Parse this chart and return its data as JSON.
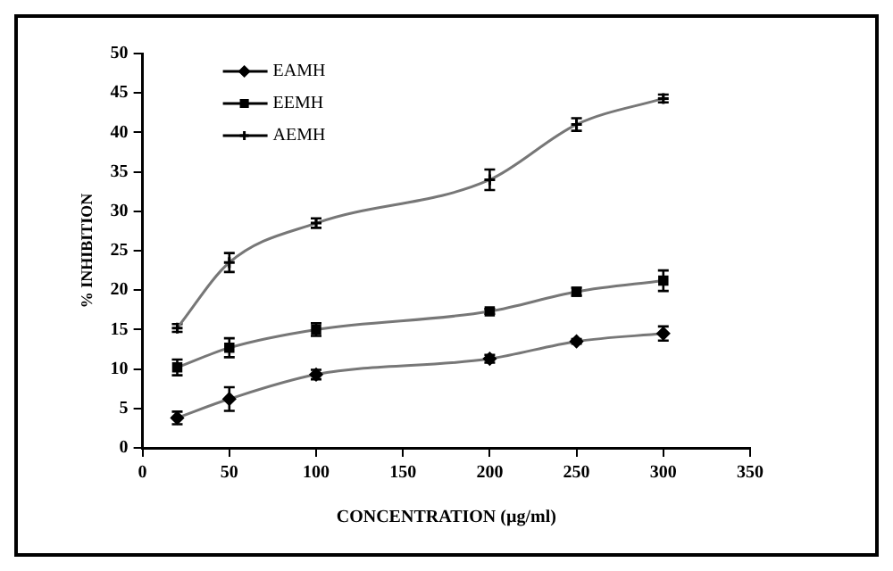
{
  "chart_data": {
    "type": "line",
    "xlabel": "CONCENTRATION (µg/ml)",
    "ylabel": "% INHIBITION",
    "x": [
      20,
      50,
      100,
      200,
      250,
      300
    ],
    "xlim": [
      0,
      350
    ],
    "xticks": [
      0,
      50,
      100,
      150,
      200,
      250,
      300,
      350
    ],
    "ylim": [
      0,
      50
    ],
    "yticks": [
      0,
      5,
      10,
      15,
      20,
      25,
      30,
      35,
      40,
      45,
      50
    ],
    "grid": false,
    "legend": "top left",
    "series": [
      {
        "name": "EAMH",
        "color": "#777777",
        "marker": "diamond",
        "values": [
          3.8,
          6.2,
          9.3,
          11.3,
          13.5,
          14.5
        ],
        "errors": [
          0.8,
          1.5,
          0.6,
          0.5,
          0.3,
          0.9
        ]
      },
      {
        "name": "EEMH",
        "color": "#777777",
        "marker": "square",
        "values": [
          10.2,
          12.7,
          15,
          17.3,
          19.8,
          21.2
        ],
        "errors": [
          1,
          1.2,
          0.8,
          0.3,
          0.5,
          1.3
        ]
      },
      {
        "name": "AEMH",
        "color": "#777777",
        "marker": "cross",
        "values": [
          15.2,
          23.5,
          28.5,
          34,
          41,
          44.3
        ],
        "errors": [
          0.5,
          1.2,
          0.6,
          1.3,
          0.8,
          0.5
        ]
      }
    ]
  }
}
